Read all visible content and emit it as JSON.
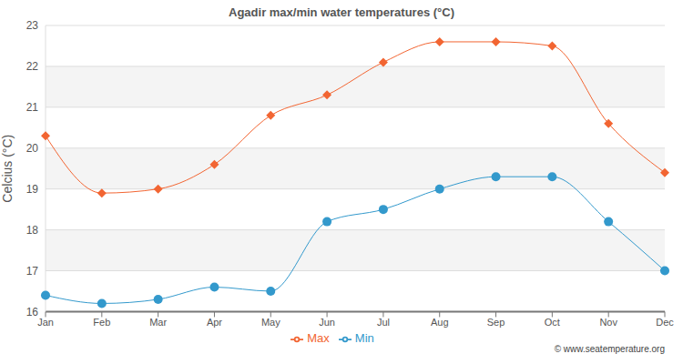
{
  "chart_data": {
    "type": "line",
    "title": "Agadir max/min water temperatures (°C)",
    "y_label": "Celcius (°C)",
    "annotation": "© www.seatemperature.org",
    "categories": [
      "Jan",
      "Feb",
      "Mar",
      "Apr",
      "May",
      "Jun",
      "Jul",
      "Aug",
      "Sep",
      "Oct",
      "Nov",
      "Dec"
    ],
    "series": [
      {
        "name": "Max",
        "color": "#f26532",
        "marker": "diamond",
        "values": [
          20.3,
          18.9,
          19.0,
          19.6,
          20.8,
          21.3,
          22.1,
          22.6,
          22.6,
          22.5,
          20.6,
          19.4
        ]
      },
      {
        "name": "Min",
        "color": "#3399cc",
        "marker": "circle",
        "values": [
          16.4,
          16.2,
          16.3,
          16.6,
          16.5,
          18.2,
          18.5,
          19.0,
          19.3,
          19.3,
          18.2,
          17.0
        ]
      }
    ],
    "ylim": [
      16,
      23
    ],
    "yticks": [
      16,
      17,
      18,
      19,
      20,
      21,
      22,
      23
    ],
    "grid": true,
    "legend": "bottom"
  }
}
